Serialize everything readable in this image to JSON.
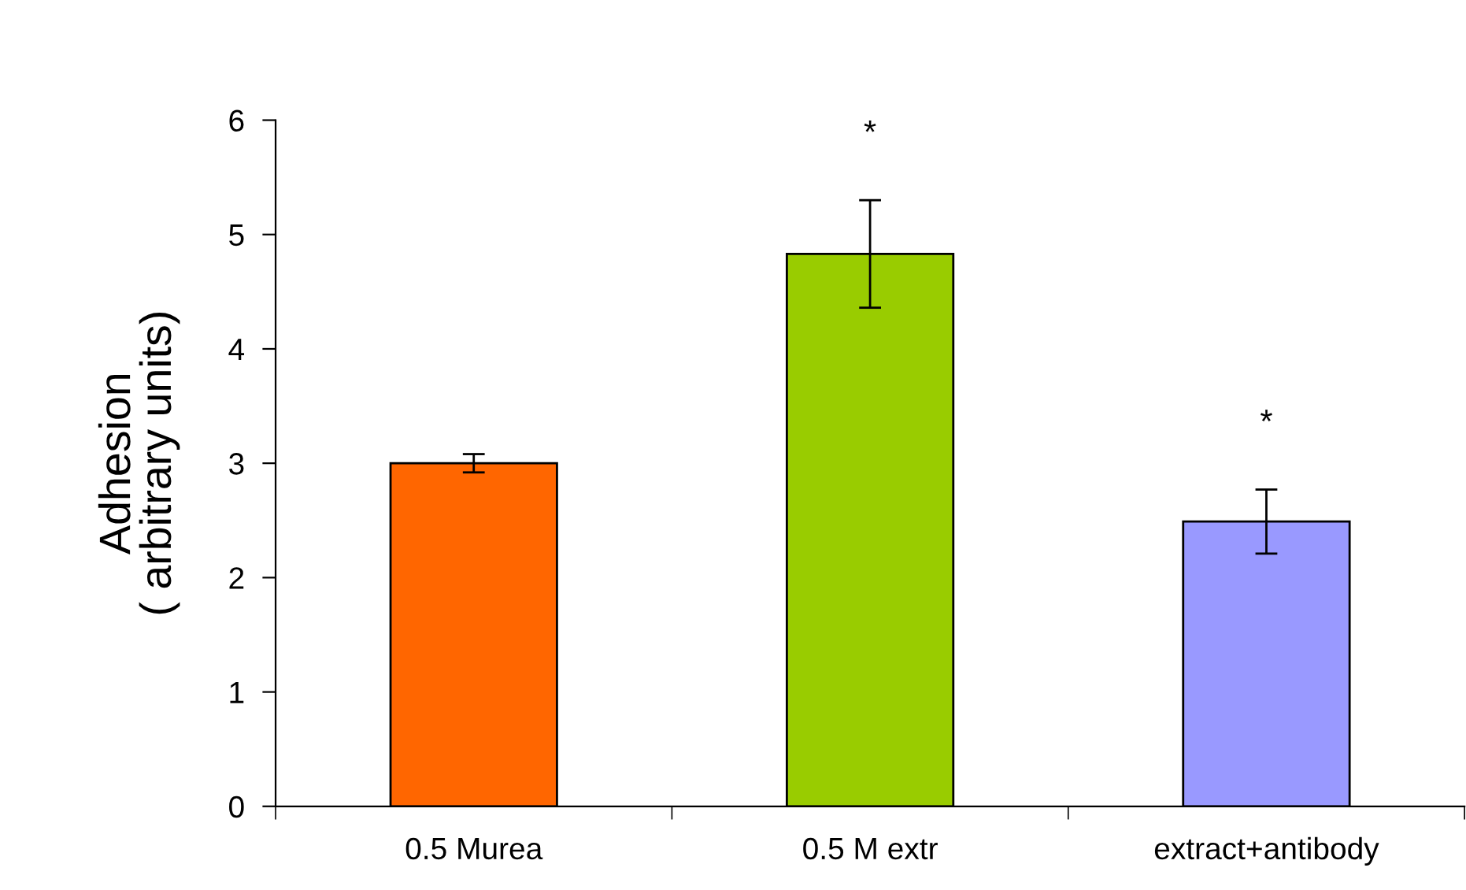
{
  "chart_data": {
    "type": "bar",
    "ylabel": "Adhesion\n( arbitrary units)",
    "categories": [
      "0.5 Murea",
      "0.5 M extr",
      "extract+antibody"
    ],
    "values": [
      3.0,
      4.83,
      2.49
    ],
    "errors": [
      0.08,
      0.47,
      0.28
    ],
    "colors": [
      "#ff6600",
      "#99cc00",
      "#9999ff"
    ],
    "ylim": [
      0,
      6
    ],
    "yticks": [
      0,
      1,
      2,
      3,
      4,
      5,
      6
    ],
    "annotations": [
      "*",
      "*"
    ],
    "grid": false,
    "legend": false
  }
}
